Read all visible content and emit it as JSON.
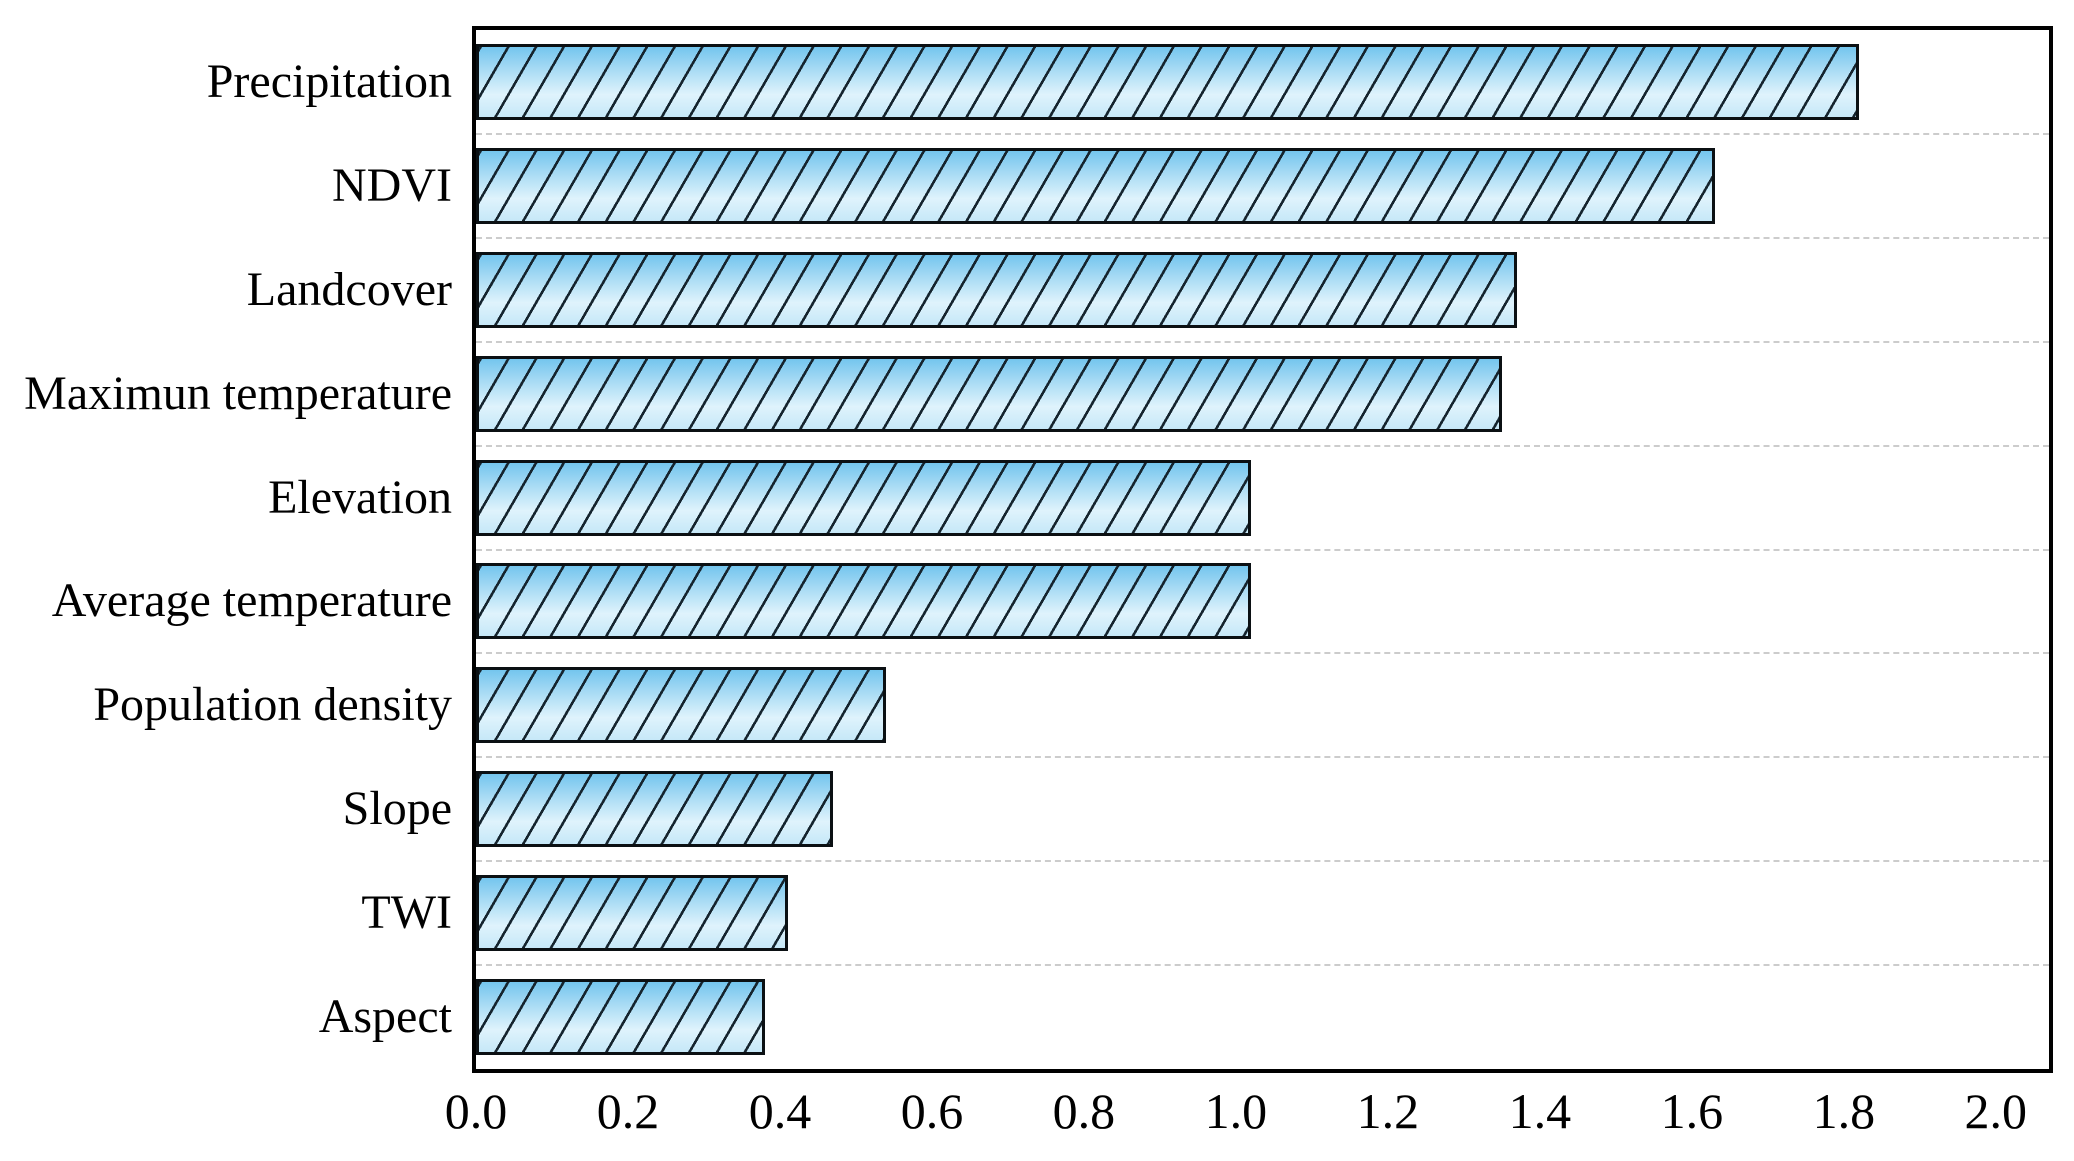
{
  "chart_data": {
    "type": "bar",
    "orientation": "horizontal",
    "title": "",
    "xlabel": "",
    "ylabel": "",
    "categories": [
      "Precipitation",
      "NDVI",
      "Landcover",
      "Maximun temperature",
      "Elevation",
      "Average temperature",
      "Population density",
      "Slope",
      "TWI",
      "Aspect"
    ],
    "values": [
      1.82,
      1.63,
      1.37,
      1.35,
      1.02,
      1.02,
      0.54,
      0.47,
      0.41,
      0.38
    ],
    "xlim": [
      0,
      2.07
    ],
    "xtick_labels": [
      "0.0",
      "0.2",
      "0.4",
      "0.6",
      "0.8",
      "1.0",
      "1.2",
      "1.4",
      "1.6",
      "1.8",
      "2.0"
    ],
    "xtick_values": [
      0.0,
      0.2,
      0.4,
      0.6,
      0.8,
      1.0,
      1.2,
      1.4,
      1.6,
      1.8,
      2.0
    ],
    "grid": "dashed horizontal lines between category rows",
    "legend": "none",
    "bar_hatch": "diagonal-forward-slash",
    "style": {
      "bar_gradient": [
        "#74c5ee",
        "#a8dbf4",
        "#dff3fc",
        "#c6e8f8"
      ],
      "hatch_color": "#15242e",
      "bar_edge_color": "#0b1013",
      "axis_color": "#000000",
      "grid_color": "#cccccc",
      "text_color": "#000000"
    }
  }
}
